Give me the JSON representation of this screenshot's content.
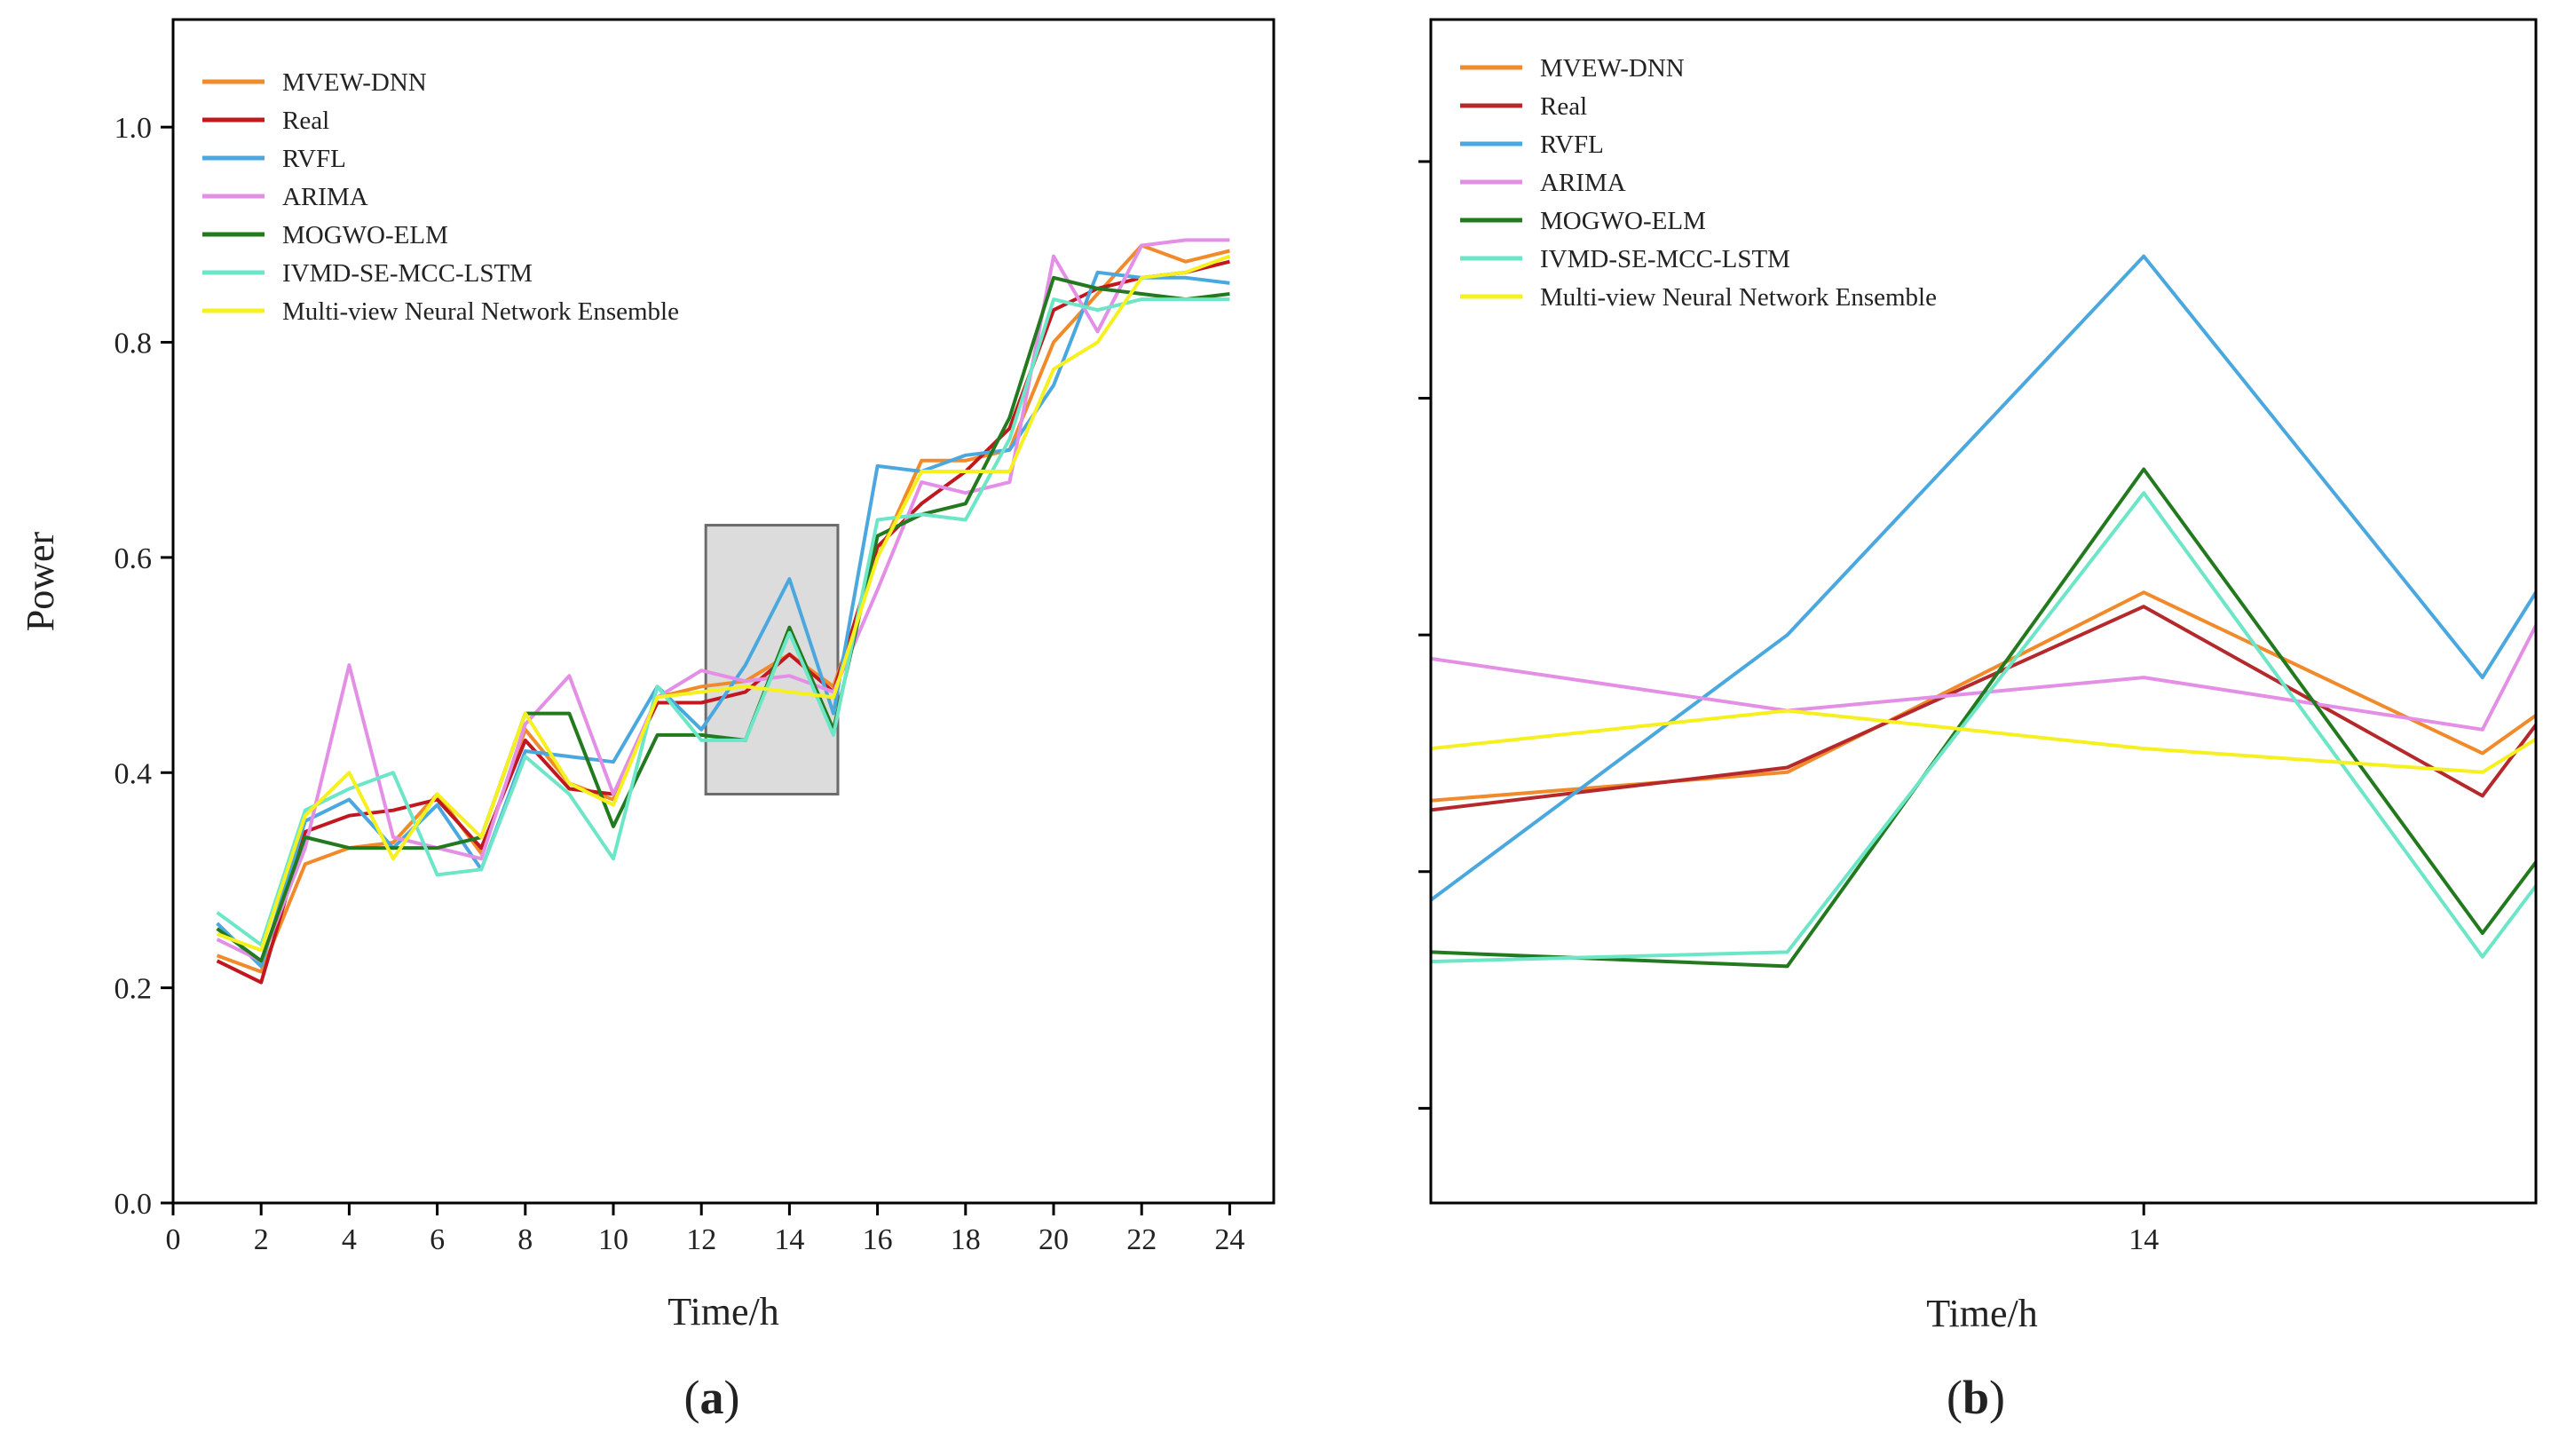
{
  "chart_data": [
    {
      "panel_label": {
        "open": "(",
        "letter": "a",
        "close": ")"
      },
      "type": "line",
      "title": "",
      "xlabel": "Time/h",
      "ylabel": "Power",
      "xlim": [
        0,
        25
      ],
      "ylim": [
        0,
        1.1
      ],
      "xticks": [
        0,
        2,
        4,
        6,
        8,
        10,
        12,
        14,
        16,
        18,
        20,
        22,
        24
      ],
      "xtick_labels": [
        "0",
        "2",
        "4",
        "6",
        "8",
        "10",
        "12",
        "14",
        "16",
        "18",
        "20",
        "22",
        "24"
      ],
      "yticks": [
        0,
        0.2,
        0.4,
        0.6,
        0.8,
        1.0
      ],
      "ytick_labels": [
        "0.0",
        "0.2",
        "0.4",
        "0.6",
        "0.8",
        "1.0"
      ],
      "legend_position": "top-left",
      "highlight_box": {
        "x": [
          12.1,
          15.1
        ],
        "y": [
          0.38,
          0.63
        ]
      },
      "x": [
        1,
        2,
        3,
        4,
        5,
        6,
        7,
        8,
        9,
        10,
        11,
        12,
        13,
        14,
        15,
        16,
        17,
        18,
        19,
        20,
        21,
        22,
        23,
        24
      ],
      "series": [
        {
          "name": "MVEW-DNN",
          "color": "#F08A2A",
          "values": [
            0.23,
            0.215,
            0.315,
            0.33,
            0.335,
            0.38,
            0.325,
            0.44,
            0.39,
            0.375,
            0.47,
            0.48,
            0.485,
            0.51,
            0.48,
            0.6,
            0.69,
            0.69,
            0.7,
            0.8,
            0.845,
            0.89,
            0.875,
            0.885
          ]
        },
        {
          "name": "Real",
          "color": "#C0181E",
          "values": [
            0.225,
            0.205,
            0.345,
            0.36,
            0.365,
            0.375,
            0.33,
            0.43,
            0.385,
            0.38,
            0.465,
            0.465,
            0.475,
            0.51,
            0.475,
            0.61,
            0.65,
            0.68,
            0.72,
            0.83,
            0.85,
            0.86,
            0.865,
            0.875
          ]
        },
        {
          "name": "RVFL",
          "color": "#4AA8DF",
          "values": [
            0.26,
            0.22,
            0.355,
            0.375,
            0.33,
            0.37,
            0.31,
            0.42,
            0.415,
            0.41,
            0.48,
            0.44,
            0.5,
            0.58,
            0.455,
            0.685,
            0.68,
            0.695,
            0.7,
            0.76,
            0.865,
            0.86,
            0.86,
            0.855
          ]
        },
        {
          "name": "ARIMA",
          "color": "#E38FE6",
          "values": [
            0.245,
            0.225,
            0.33,
            0.5,
            0.34,
            0.33,
            0.32,
            0.445,
            0.49,
            0.38,
            0.47,
            0.495,
            0.485,
            0.49,
            0.475,
            0.57,
            0.67,
            0.66,
            0.67,
            0.88,
            0.81,
            0.89,
            0.895,
            0.895
          ]
        },
        {
          "name": "MOGWO-ELM",
          "color": "#237A1E",
          "values": [
            0.255,
            0.225,
            0.34,
            0.33,
            0.33,
            0.33,
            0.34,
            0.455,
            0.455,
            0.35,
            0.435,
            0.435,
            0.43,
            0.535,
            0.44,
            0.62,
            0.64,
            0.65,
            0.73,
            0.86,
            0.85,
            0.845,
            0.84,
            0.845
          ]
        },
        {
          "name": "IVMD-SE-MCC-LSTM",
          "color": "#6DE6C8",
          "values": [
            0.27,
            0.24,
            0.365,
            0.385,
            0.4,
            0.305,
            0.31,
            0.415,
            0.38,
            0.32,
            0.48,
            0.43,
            0.43,
            0.53,
            0.435,
            0.635,
            0.64,
            0.635,
            0.71,
            0.84,
            0.83,
            0.84,
            0.84,
            0.84
          ]
        },
        {
          "name": "Multi-view Neural Network Ensemble",
          "color": "#F5F01E",
          "values": [
            0.25,
            0.235,
            0.36,
            0.4,
            0.32,
            0.38,
            0.34,
            0.455,
            0.39,
            0.37,
            0.47,
            0.475,
            0.48,
            0.475,
            0.47,
            0.6,
            0.68,
            0.68,
            0.68,
            0.775,
            0.8,
            0.86,
            0.865,
            0.88
          ]
        }
      ]
    },
    {
      "panel_label": {
        "open": "(",
        "letter": "b",
        "close": ")"
      },
      "type": "line",
      "title": "",
      "xlabel": "Time/h",
      "ylabel": "",
      "xlim": [
        12,
        15.1
      ],
      "ylim": [
        0.38,
        0.63
      ],
      "xticks": [
        14
      ],
      "xtick_labels": [
        "14"
      ],
      "yticks": [
        0.4,
        0.45,
        0.5,
        0.55,
        0.6
      ],
      "ytick_labels": [],
      "legend_position": "top-left",
      "x": [
        12,
        13,
        14,
        14.95,
        15.1
      ],
      "series": [
        {
          "name": "MVEW-DNN",
          "color": "#F08A2A",
          "values": [
            0.465,
            0.471,
            0.509,
            0.475,
            0.483
          ]
        },
        {
          "name": "Real",
          "color": "#B5282C",
          "values": [
            0.463,
            0.472,
            0.506,
            0.466,
            0.481
          ]
        },
        {
          "name": "RVFL",
          "color": "#4AA8DF",
          "values": [
            0.444,
            0.5,
            0.58,
            0.491,
            0.509
          ]
        },
        {
          "name": "ARIMA",
          "color": "#E38FE6",
          "values": [
            0.495,
            0.484,
            0.491,
            0.48,
            0.502
          ]
        },
        {
          "name": "MOGWO-ELM",
          "color": "#237A1E",
          "values": [
            0.433,
            0.43,
            0.535,
            0.437,
            0.452
          ]
        },
        {
          "name": "IVMD-SE-MCC-LSTM",
          "color": "#6DE6C8",
          "values": [
            0.431,
            0.433,
            0.53,
            0.432,
            0.447
          ]
        },
        {
          "name": "Multi-view Neural Network Ensemble",
          "color": "#F5F01E",
          "values": [
            0.476,
            0.484,
            0.476,
            0.471,
            0.478
          ]
        }
      ]
    }
  ]
}
